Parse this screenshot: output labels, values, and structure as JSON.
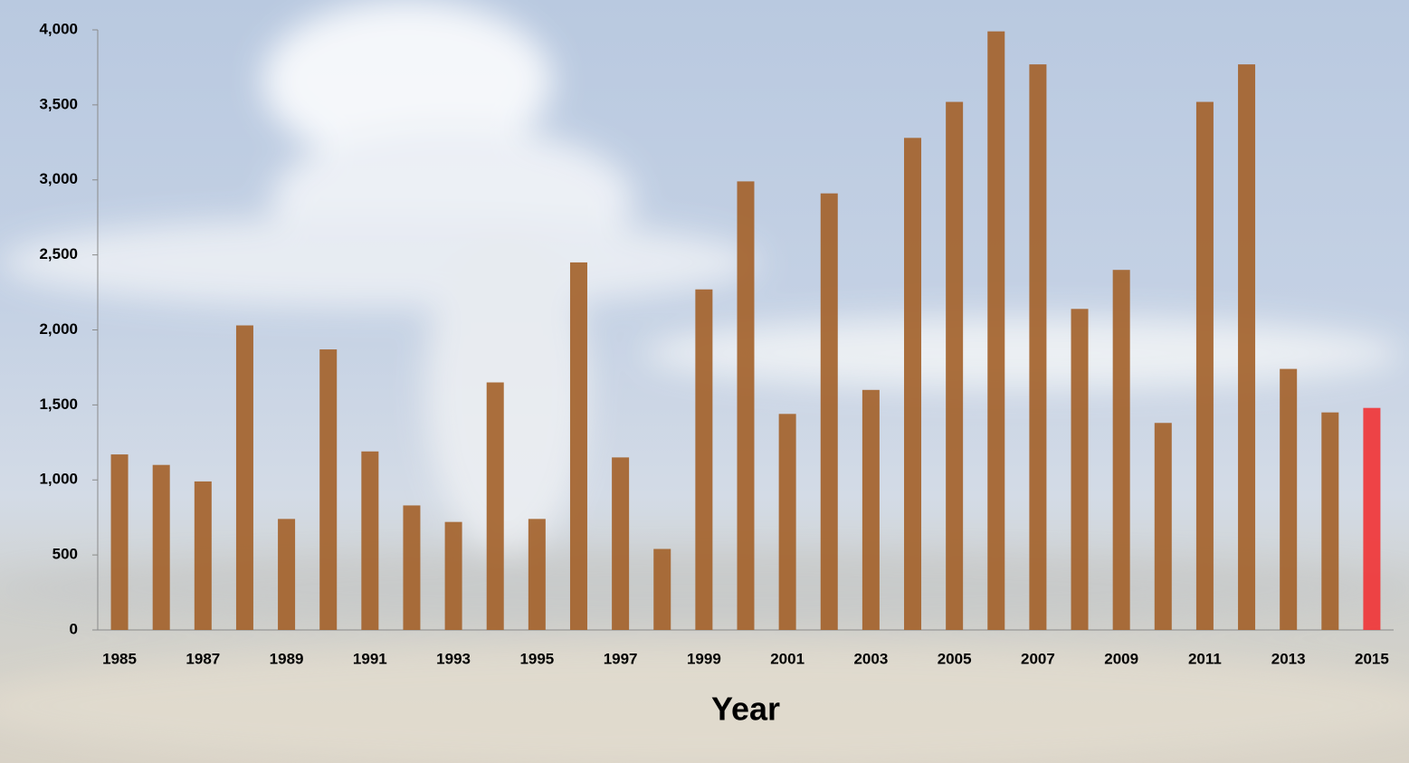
{
  "chart_data": {
    "type": "bar",
    "x_label": "Year",
    "categories": [
      "1985",
      null,
      "1987",
      null,
      "1989",
      null,
      "1991",
      null,
      "1993",
      null,
      "1995",
      null,
      "1997",
      null,
      "1999",
      null,
      "2001",
      null,
      "2003",
      null,
      "2005",
      null,
      "2007",
      null,
      "2009",
      null,
      "2011",
      null,
      "2013",
      null,
      "2015"
    ],
    "values": [
      1170,
      1100,
      990,
      2030,
      740,
      1870,
      1190,
      830,
      720,
      1650,
      740,
      2450,
      1150,
      540,
      2270,
      2990,
      1440,
      2910,
      1600,
      3280,
      3520,
      3990,
      3770,
      2140,
      2400,
      1380,
      3520,
      3770,
      1740,
      1450,
      1480
    ],
    "colors": [
      "#a4632c",
      "#a4632c",
      "#a4632c",
      "#a4632c",
      "#a4632c",
      "#a4632c",
      "#a4632c",
      "#a4632c",
      "#a4632c",
      "#a4632c",
      "#a4632c",
      "#a4632c",
      "#a4632c",
      "#a4632c",
      "#a4632c",
      "#a4632c",
      "#a4632c",
      "#a4632c",
      "#a4632c",
      "#a4632c",
      "#a4632c",
      "#a4632c",
      "#a4632c",
      "#a4632c",
      "#a4632c",
      "#a4632c",
      "#a4632c",
      "#a4632c",
      "#a4632c",
      "#a4632c",
      "#f03638"
    ],
    "ylim": [
      0,
      4000
    ],
    "yticks": [
      0,
      500,
      {
        "value": 1000,
        "label": "1,000"
      },
      {
        "value": 1500,
        "label": "1,500"
      },
      {
        "value": 2000,
        "label": "2,000"
      },
      {
        "value": 2500,
        "label": "2,500"
      },
      {
        "value": 3000,
        "label": "3,000"
      },
      {
        "value": 3500,
        "label": "3,500"
      },
      {
        "value": 4000,
        "label": "4,000"
      }
    ],
    "grid": false
  }
}
